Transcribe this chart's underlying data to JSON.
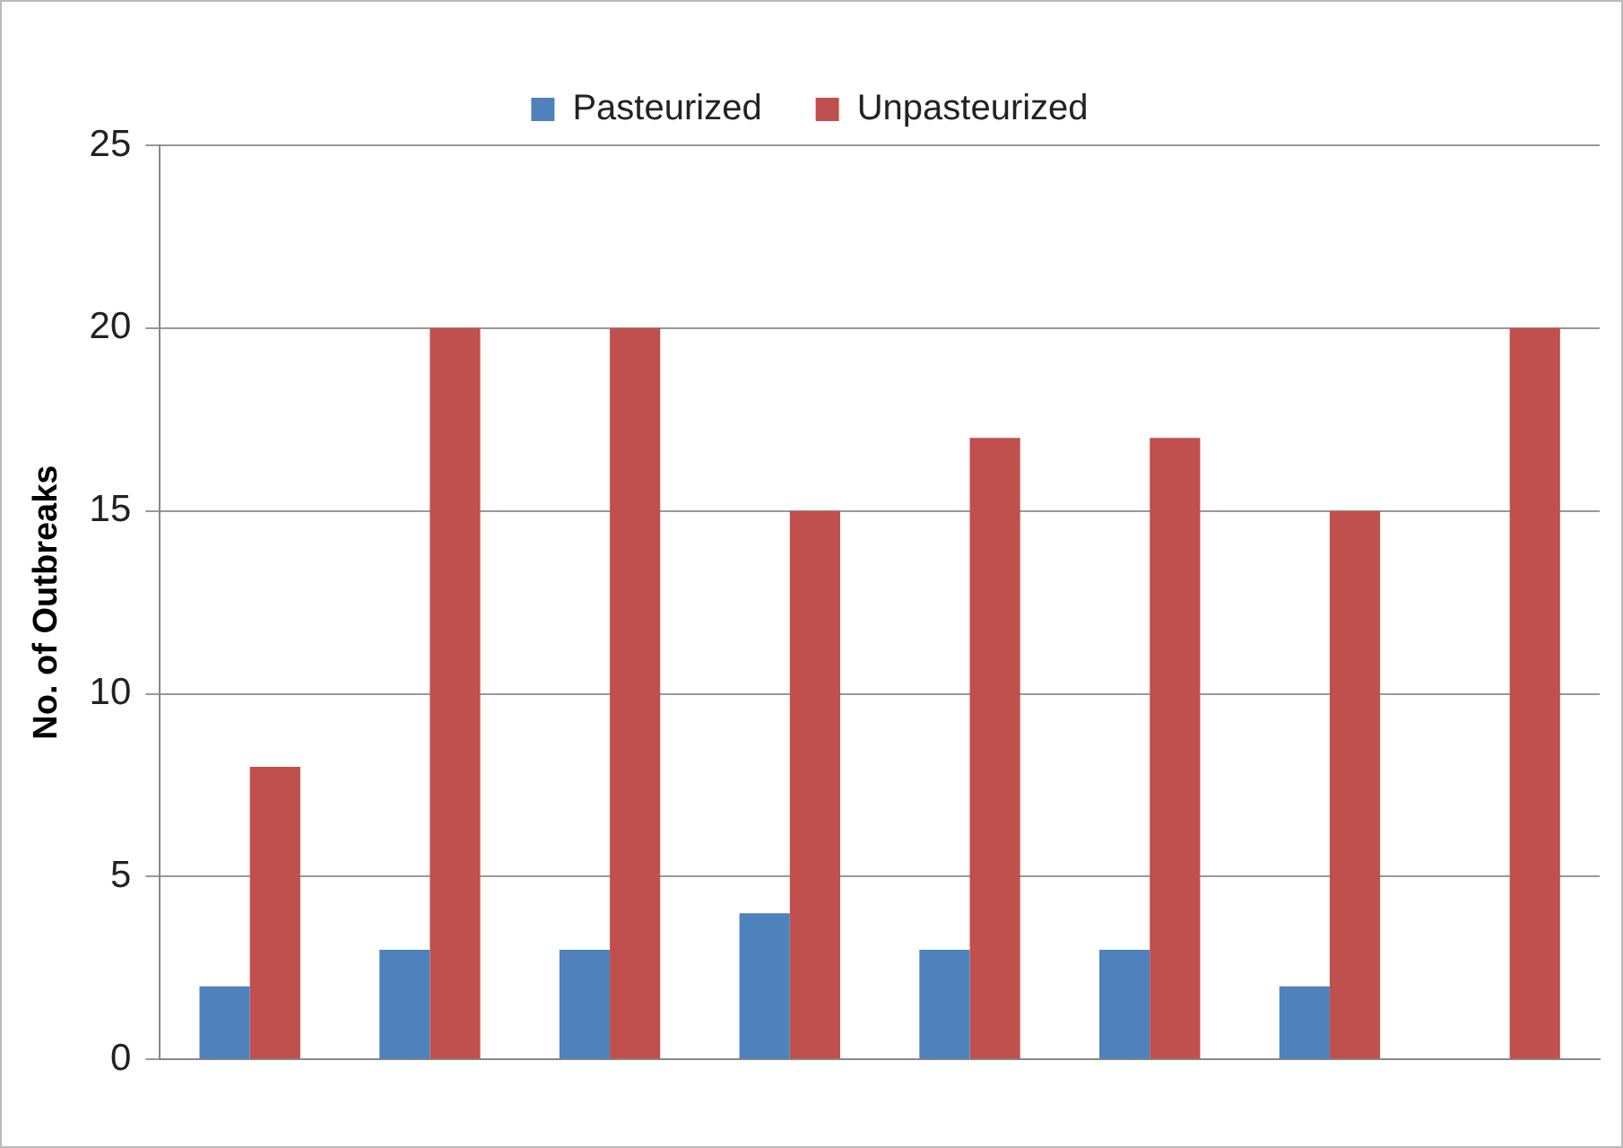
{
  "chart_data": {
    "type": "bar",
    "ylabel": "No. of Outbreaks",
    "categories": [
      null,
      null,
      null,
      null,
      null,
      null,
      null,
      null
    ],
    "series": [
      {
        "name": "Pasteurized",
        "color": "#4f81bd",
        "values": [
          2,
          3,
          3,
          4,
          3,
          3,
          2,
          0
        ]
      },
      {
        "name": "Unpasteurized",
        "color": "#c0504d",
        "values": [
          8,
          20,
          20,
          15,
          17,
          17,
          15,
          20
        ]
      }
    ],
    "ylim": [
      0,
      25
    ],
    "yticks": [
      0,
      5,
      10,
      15,
      20,
      25
    ],
    "grid": "y",
    "legend": "top"
  }
}
